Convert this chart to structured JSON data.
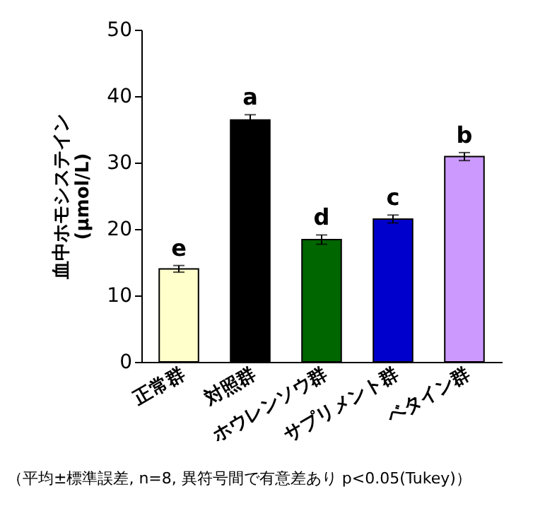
{
  "chart_data": {
    "type": "bar",
    "ylabel": "血中ホモシステイン\n(μmol/L)",
    "categories": [
      "正常群",
      "対照群",
      "ホウレンソウ群",
      "サプリメント群",
      "ベタイン群"
    ],
    "values": [
      14,
      36.4,
      18.4,
      21.5,
      30.9
    ],
    "colors": [
      "#ffffcc",
      "#000000",
      "#006600",
      "#0000cc",
      "#cc99ff"
    ],
    "errors": [
      0.5,
      0.8,
      0.7,
      0.6,
      0.6
    ],
    "ylim": [
      0,
      50
    ],
    "yticks": [
      0,
      10,
      20,
      30,
      40,
      50
    ],
    "grid": false,
    "annotations": [
      "e",
      "a",
      "d",
      "c",
      "b",
      "（平均±標準誤差, n=8, 異符号間で有意差あり p<0.05(Tukey)）"
    ]
  }
}
